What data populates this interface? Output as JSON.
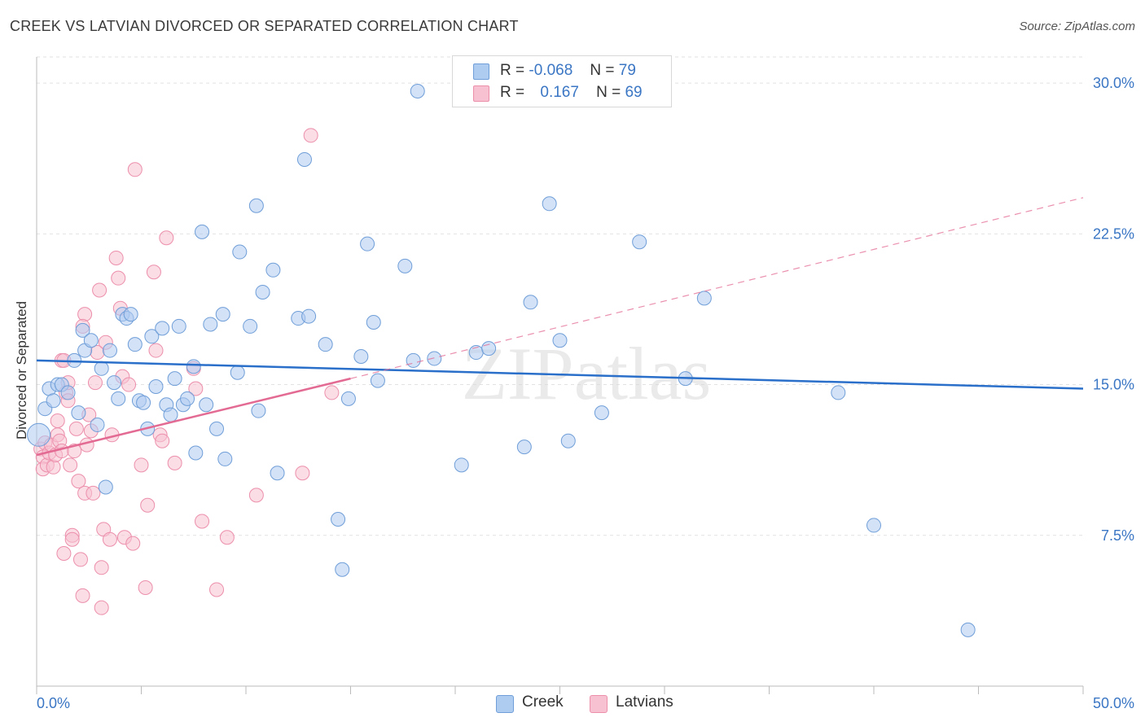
{
  "title": "CREEK VS LATVIAN DIVORCED OR SEPARATED CORRELATION CHART",
  "source": "Source: ZipAtlas.com",
  "watermark": "ZIPatlas",
  "legend": {
    "rows": [
      {
        "r_label": "R =",
        "r_value": "-0.068",
        "n_label": "N =",
        "n_value": "79"
      },
      {
        "r_label": "R =",
        "r_value": "0.167",
        "n_label": "N =",
        "n_value": "69"
      }
    ]
  },
  "bottom_legend": [
    "Creek",
    "Latvians"
  ],
  "colors": {
    "creek_fill": "#aecbf0",
    "creek_stroke": "#6f9ed8",
    "creek_line": "#2a6fc9",
    "latvian_fill": "#f7c1d1",
    "latvian_stroke": "#ec8fab",
    "latvian_line": "#e36b93",
    "axis_label": "#3a76c4",
    "grid": "#e2e2e2"
  },
  "chart_data": {
    "type": "scatter",
    "title": "CREEK VS LATVIAN DIVORCED OR SEPARATED CORRELATION CHART",
    "xlabel": "",
    "ylabel": "Divorced or Separated",
    "xlim": [
      0,
      50
    ],
    "ylim": [
      0,
      31.3
    ],
    "x_tick_labels": [
      "0.0%",
      "50.0%"
    ],
    "y_ticks": [
      7.5,
      15.0,
      22.5,
      30.0
    ],
    "y_tick_labels": [
      "7.5%",
      "15.0%",
      "22.5%",
      "30.0%"
    ],
    "grid": "horizontal dashed",
    "series": [
      {
        "name": "Creek",
        "r": -0.068,
        "n": 79,
        "trend": {
          "x0": 0,
          "y0": 16.2,
          "x1": 50,
          "y1": 14.8
        },
        "points": [
          [
            0.1,
            12.5
          ],
          [
            0.4,
            13.8
          ],
          [
            0.6,
            14.8
          ],
          [
            0.8,
            14.2
          ],
          [
            1.0,
            15.0
          ],
          [
            1.2,
            15.0
          ],
          [
            1.5,
            14.6
          ],
          [
            1.8,
            16.2
          ],
          [
            2.0,
            13.6
          ],
          [
            2.2,
            17.7
          ],
          [
            2.3,
            16.7
          ],
          [
            2.6,
            17.2
          ],
          [
            2.9,
            13.0
          ],
          [
            3.1,
            15.8
          ],
          [
            3.3,
            9.9
          ],
          [
            3.5,
            16.7
          ],
          [
            3.7,
            15.1
          ],
          [
            3.9,
            14.3
          ],
          [
            4.1,
            18.5
          ],
          [
            4.3,
            18.3
          ],
          [
            4.5,
            18.5
          ],
          [
            4.7,
            17.0
          ],
          [
            4.9,
            14.2
          ],
          [
            5.1,
            14.1
          ],
          [
            5.3,
            12.8
          ],
          [
            5.5,
            17.4
          ],
          [
            5.7,
            14.9
          ],
          [
            6.0,
            17.8
          ],
          [
            6.2,
            14.0
          ],
          [
            6.4,
            13.5
          ],
          [
            6.6,
            15.3
          ],
          [
            6.8,
            17.9
          ],
          [
            7.0,
            14.0
          ],
          [
            7.2,
            14.3
          ],
          [
            7.5,
            15.9
          ],
          [
            7.6,
            11.6
          ],
          [
            7.9,
            22.6
          ],
          [
            8.1,
            14.0
          ],
          [
            8.3,
            18.0
          ],
          [
            8.6,
            12.8
          ],
          [
            8.9,
            18.5
          ],
          [
            9.0,
            11.3
          ],
          [
            9.6,
            15.6
          ],
          [
            9.7,
            21.6
          ],
          [
            10.2,
            17.9
          ],
          [
            10.5,
            23.9
          ],
          [
            10.6,
            13.7
          ],
          [
            10.8,
            19.6
          ],
          [
            11.3,
            20.7
          ],
          [
            11.5,
            10.6
          ],
          [
            12.5,
            18.3
          ],
          [
            12.8,
            26.2
          ],
          [
            13.0,
            18.4
          ],
          [
            13.8,
            17.0
          ],
          [
            14.4,
            8.3
          ],
          [
            14.6,
            5.8
          ],
          [
            14.9,
            14.3
          ],
          [
            15.5,
            16.4
          ],
          [
            15.8,
            22.0
          ],
          [
            16.1,
            18.1
          ],
          [
            16.3,
            15.2
          ],
          [
            17.6,
            20.9
          ],
          [
            18.0,
            16.2
          ],
          [
            18.2,
            29.6
          ],
          [
            19.0,
            16.3
          ],
          [
            20.3,
            11.0
          ],
          [
            21.0,
            16.6
          ],
          [
            21.6,
            16.8
          ],
          [
            23.3,
            11.9
          ],
          [
            23.6,
            19.1
          ],
          [
            24.5,
            24.0
          ],
          [
            25.0,
            17.2
          ],
          [
            25.4,
            12.2
          ],
          [
            27.0,
            13.6
          ],
          [
            28.8,
            22.1
          ],
          [
            31.0,
            15.3
          ],
          [
            31.9,
            19.3
          ],
          [
            38.3,
            14.6
          ],
          [
            40.0,
            8.0
          ],
          [
            44.5,
            2.8
          ]
        ]
      },
      {
        "name": "Latvians",
        "r": 0.167,
        "n": 69,
        "trend": {
          "x0": 0,
          "y0": 11.5,
          "x1": 15,
          "y1": 15.3
        },
        "trend_ext": {
          "x0": 15,
          "y0": 15.3,
          "x1": 50,
          "y1": 24.3
        },
        "points": [
          [
            0.2,
            11.8
          ],
          [
            0.3,
            11.4
          ],
          [
            0.3,
            10.8
          ],
          [
            0.4,
            12.1
          ],
          [
            0.5,
            11.0
          ],
          [
            0.6,
            11.6
          ],
          [
            0.7,
            12.0
          ],
          [
            0.8,
            10.9
          ],
          [
            0.9,
            11.5
          ],
          [
            1.0,
            12.5
          ],
          [
            1.0,
            13.2
          ],
          [
            1.1,
            12.2
          ],
          [
            1.2,
            11.7
          ],
          [
            1.2,
            16.2
          ],
          [
            1.3,
            6.6
          ],
          [
            1.4,
            14.6
          ],
          [
            1.5,
            14.2
          ],
          [
            1.5,
            15.1
          ],
          [
            1.6,
            11.0
          ],
          [
            1.7,
            7.5
          ],
          [
            1.7,
            7.3
          ],
          [
            1.8,
            11.7
          ],
          [
            1.9,
            12.8
          ],
          [
            2.0,
            10.2
          ],
          [
            2.1,
            6.3
          ],
          [
            2.2,
            4.5
          ],
          [
            2.3,
            9.6
          ],
          [
            2.3,
            18.5
          ],
          [
            2.4,
            12.0
          ],
          [
            2.5,
            13.5
          ],
          [
            2.6,
            12.7
          ],
          [
            2.7,
            9.6
          ],
          [
            2.8,
            15.1
          ],
          [
            2.9,
            16.6
          ],
          [
            3.0,
            19.7
          ],
          [
            3.1,
            5.9
          ],
          [
            3.1,
            3.9
          ],
          [
            3.2,
            7.8
          ],
          [
            3.3,
            17.1
          ],
          [
            3.5,
            7.3
          ],
          [
            3.6,
            12.5
          ],
          [
            3.8,
            21.3
          ],
          [
            3.9,
            20.3
          ],
          [
            4.0,
            18.8
          ],
          [
            4.1,
            15.4
          ],
          [
            4.2,
            7.4
          ],
          [
            4.4,
            15.0
          ],
          [
            4.6,
            7.1
          ],
          [
            4.7,
            25.7
          ],
          [
            5.0,
            11.0
          ],
          [
            5.2,
            4.9
          ],
          [
            5.3,
            9.0
          ],
          [
            5.6,
            20.6
          ],
          [
            5.7,
            16.7
          ],
          [
            5.9,
            12.5
          ],
          [
            6.0,
            12.2
          ],
          [
            6.2,
            22.3
          ],
          [
            6.6,
            11.1
          ],
          [
            7.6,
            14.8
          ],
          [
            7.5,
            15.8
          ],
          [
            7.9,
            8.2
          ],
          [
            8.6,
            4.8
          ],
          [
            9.1,
            7.4
          ],
          [
            10.5,
            9.5
          ],
          [
            12.7,
            10.6
          ],
          [
            13.1,
            27.4
          ],
          [
            14.1,
            14.6
          ],
          [
            2.2,
            17.9
          ],
          [
            1.3,
            16.2
          ]
        ]
      }
    ]
  }
}
